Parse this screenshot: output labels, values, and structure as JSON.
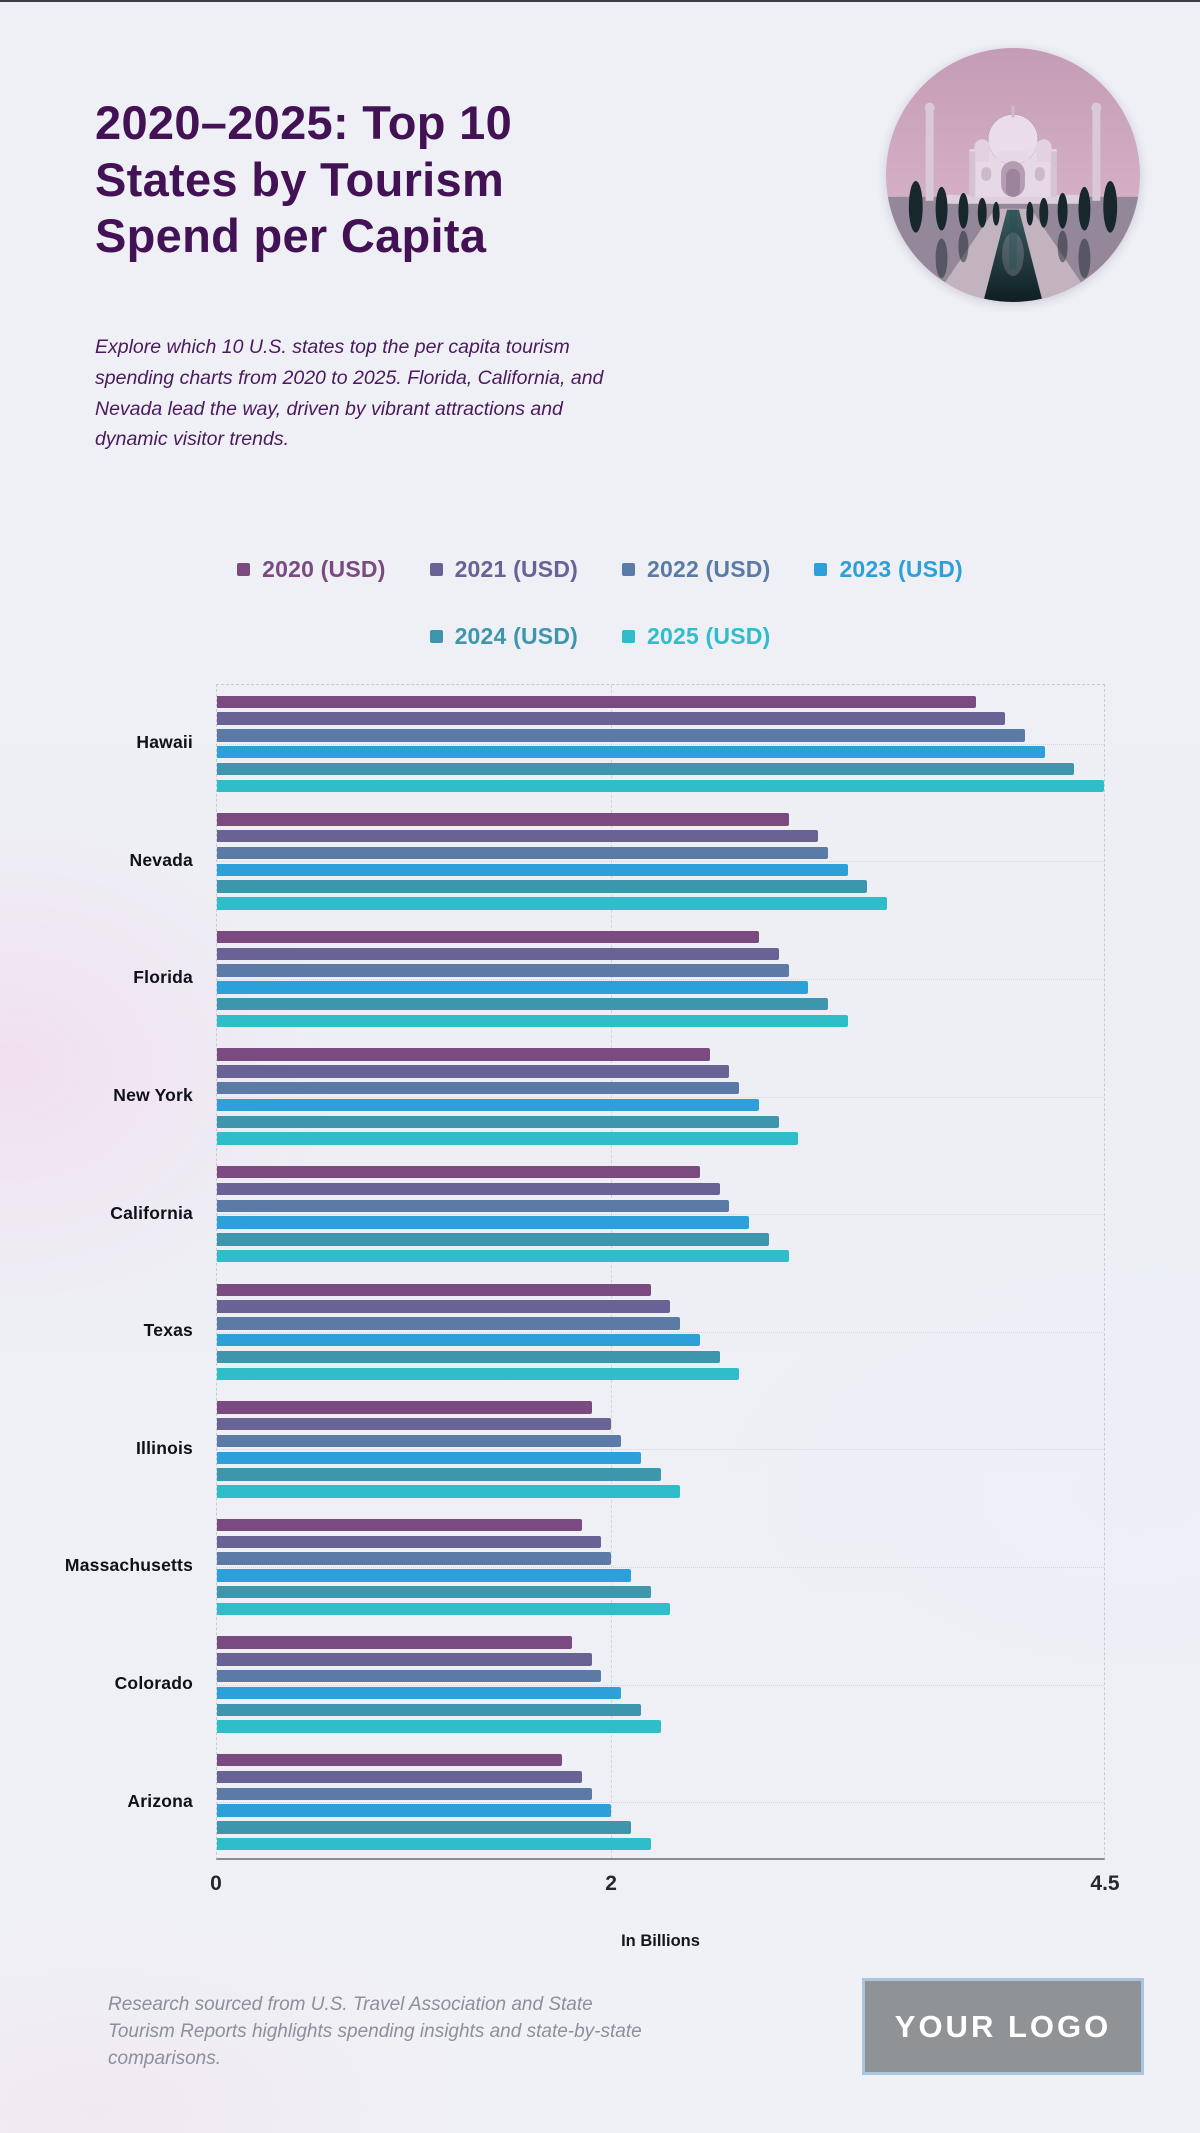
{
  "header": {
    "title_lines": [
      "2020–2025: Top 10",
      "States by Tourism",
      "Spend per Capita"
    ],
    "subtitle_lines": [
      "Explore which 10 U.S. states top the per capita tourism",
      "spending charts from 2020 to 2025. Florida, California, and",
      "Nevada lead the way, driven by vibrant attractions and",
      "dynamic visitor trends."
    ],
    "hero_image": "taj-mahal-circular-photo",
    "title_color": "#431254"
  },
  "chart_data": {
    "type": "bar",
    "orientation": "horizontal",
    "title": "",
    "xlabel": "In Billions",
    "ylabel": "",
    "xlim": [
      0,
      4.5
    ],
    "xticks": [
      {
        "value": 0,
        "label": "0"
      },
      {
        "value": 2,
        "label": "2"
      },
      {
        "value": 4.5,
        "label": "4.5"
      }
    ],
    "grid": "dashed",
    "legend_position": "top",
    "categories": [
      "Hawaii",
      "Nevada",
      "Florida",
      "New York",
      "California",
      "Texas",
      "Illinois",
      "Massachusetts",
      "Colorado",
      "Arizona"
    ],
    "series": [
      {
        "name": "2020 (USD)",
        "color": "#7b4a80",
        "values": [
          3.85,
          2.9,
          2.75,
          2.5,
          2.45,
          2.2,
          1.9,
          1.85,
          1.8,
          1.75
        ]
      },
      {
        "name": "2021 (USD)",
        "color": "#696295",
        "values": [
          4.0,
          3.05,
          2.85,
          2.6,
          2.55,
          2.3,
          2.0,
          1.95,
          1.9,
          1.85
        ]
      },
      {
        "name": "2022 (USD)",
        "color": "#5c7aa6",
        "values": [
          4.1,
          3.1,
          2.9,
          2.65,
          2.6,
          2.35,
          2.05,
          2.0,
          1.95,
          1.9
        ]
      },
      {
        "name": "2023 (USD)",
        "color": "#2d9fd9",
        "values": [
          4.2,
          3.2,
          3.0,
          2.75,
          2.7,
          2.45,
          2.15,
          2.1,
          2.05,
          2.0
        ]
      },
      {
        "name": "2024 (USD)",
        "color": "#3e96ad",
        "values": [
          4.35,
          3.3,
          3.1,
          2.85,
          2.8,
          2.55,
          2.25,
          2.2,
          2.15,
          2.1
        ]
      },
      {
        "name": "2025 (USD)",
        "color": "#2fbdca",
        "values": [
          4.5,
          3.4,
          3.2,
          2.95,
          2.9,
          2.65,
          2.35,
          2.3,
          2.25,
          2.2
        ]
      }
    ]
  },
  "footer": {
    "note_lines": [
      "Research sourced from U.S. Travel Association and State",
      "Tourism Reports highlights spending insights and state-by-state",
      "comparisons."
    ],
    "logo_text": "YOUR LOGO"
  }
}
